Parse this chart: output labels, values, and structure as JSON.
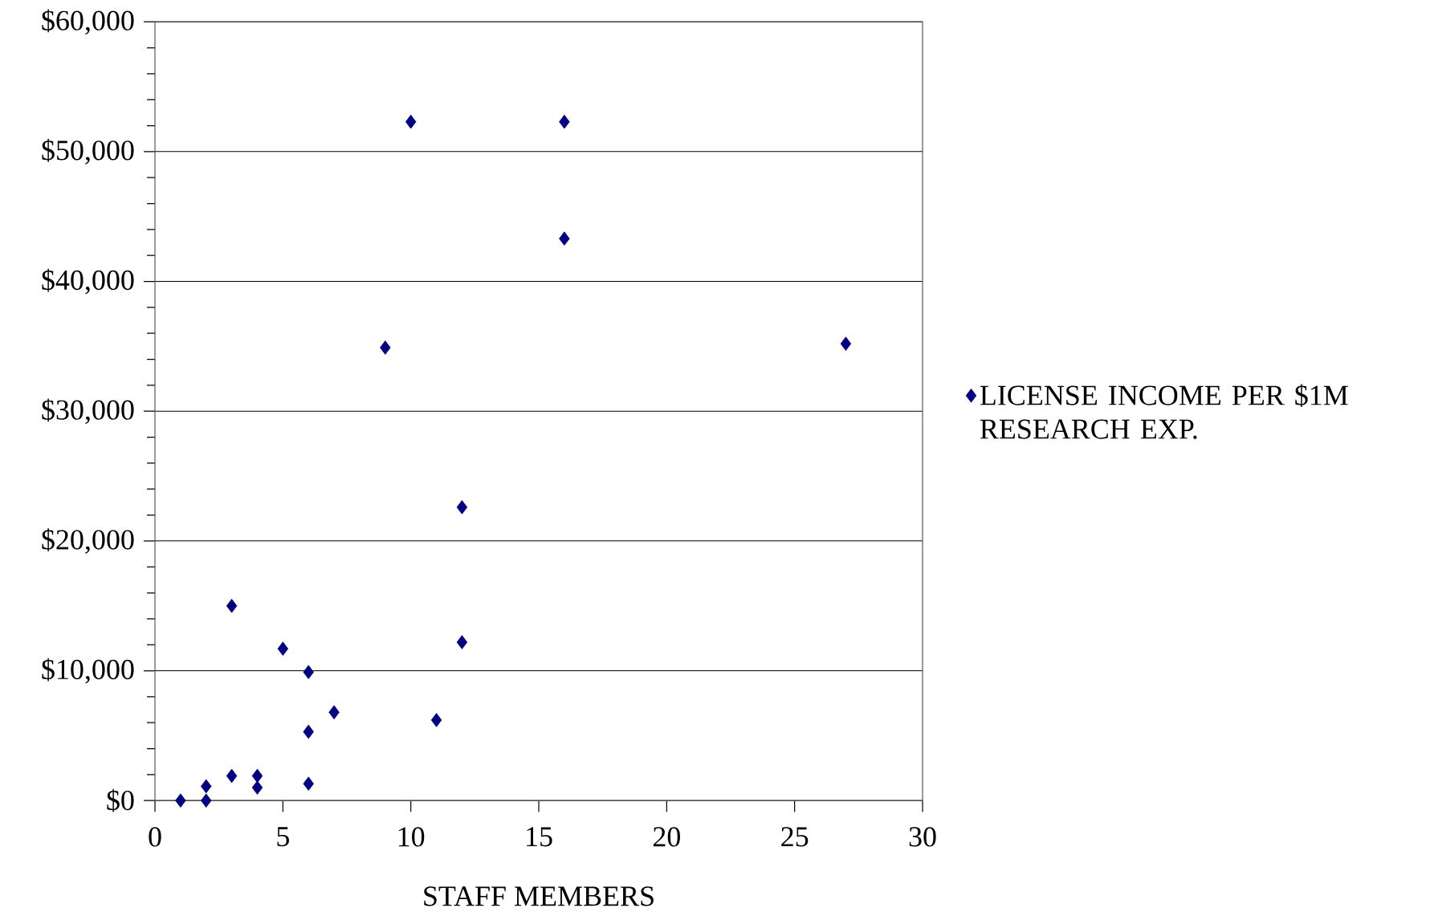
{
  "chart_data": {
    "type": "scatter",
    "xlabel": "STAFF MEMBERS",
    "x": [
      1,
      2,
      2,
      3,
      3,
      4,
      4,
      5,
      6,
      6,
      6,
      7,
      9,
      10,
      11,
      12,
      12,
      16,
      16,
      27
    ],
    "series": [
      {
        "name": "LICENSE INCOME  PER $1M RESEARCH EXP.",
        "color": "#000080",
        "values": [
          0,
          0,
          1100,
          1900,
          15000,
          1000,
          1900,
          11700,
          9900,
          5300,
          1300,
          6800,
          34900,
          52300,
          6200,
          22600,
          12200,
          52300,
          43300,
          35200
        ]
      }
    ],
    "xlim": [
      0,
      30
    ],
    "xticks": [
      0,
      5,
      10,
      15,
      20,
      25,
      30
    ],
    "ylim": [
      0,
      60000
    ],
    "yticks": [
      {
        "value": 0,
        "label": "$0"
      },
      {
        "value": 10000,
        "label": "$10,000"
      },
      {
        "value": 20000,
        "label": "$20,000"
      },
      {
        "value": 30000,
        "label": "$30,000"
      },
      {
        "value": 40000,
        "label": "$40,000"
      },
      {
        "value": 50000,
        "label": "$50,000"
      },
      {
        "value": 60000,
        "label": "$60,000"
      }
    ],
    "grid": "y",
    "legend": "right",
    "marker": "diamond"
  }
}
